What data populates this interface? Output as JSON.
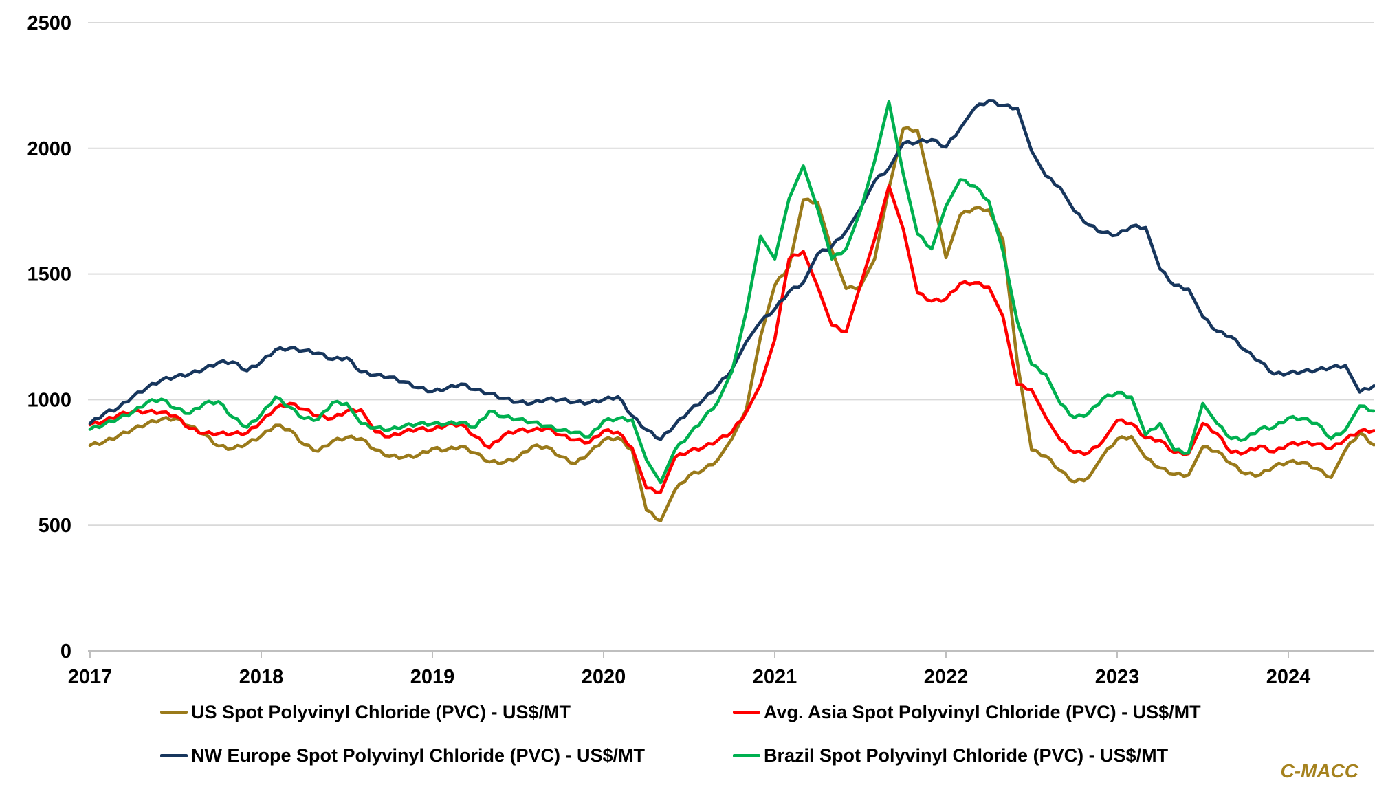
{
  "watermark": "C-MACC",
  "colors": {
    "us_line": "#9A7A1A",
    "asia_line": "#FF0000",
    "europe_line": "#17365D",
    "brazil_line": "#00B050",
    "gridline": "#D9D9D9",
    "axis": "#BFBFBF",
    "text": "#000000",
    "watermark": "#A5821E",
    "background": "#FFFFFF"
  },
  "chart_data": {
    "type": "line",
    "title": "",
    "xlabel": "",
    "ylabel": "",
    "unit": "US$/MT",
    "ylim": [
      0,
      2500
    ],
    "yticks": [
      0,
      500,
      1000,
      1500,
      2000,
      2500
    ],
    "xticks": [
      "2017",
      "2018",
      "2019",
      "2020",
      "2021",
      "2022",
      "2023",
      "2024"
    ],
    "grid": "horizontal",
    "legend_position": "bottom",
    "months": [
      "2017-01",
      "2017-02",
      "2017-03",
      "2017-04",
      "2017-05",
      "2017-06",
      "2017-07",
      "2017-08",
      "2017-09",
      "2017-10",
      "2017-11",
      "2017-12",
      "2018-01",
      "2018-02",
      "2018-03",
      "2018-04",
      "2018-05",
      "2018-06",
      "2018-07",
      "2018-08",
      "2018-09",
      "2018-10",
      "2018-11",
      "2018-12",
      "2019-01",
      "2019-02",
      "2019-03",
      "2019-04",
      "2019-05",
      "2019-06",
      "2019-07",
      "2019-08",
      "2019-09",
      "2019-10",
      "2019-11",
      "2019-12",
      "2020-01",
      "2020-02",
      "2020-03",
      "2020-04",
      "2020-05",
      "2020-06",
      "2020-07",
      "2020-08",
      "2020-09",
      "2020-10",
      "2020-11",
      "2020-12",
      "2021-01",
      "2021-02",
      "2021-03",
      "2021-04",
      "2021-05",
      "2021-06",
      "2021-07",
      "2021-08",
      "2021-09",
      "2021-10",
      "2021-11",
      "2021-12",
      "2022-01",
      "2022-02",
      "2022-03",
      "2022-04",
      "2022-05",
      "2022-06",
      "2022-07",
      "2022-08",
      "2022-09",
      "2022-10",
      "2022-11",
      "2022-12",
      "2023-01",
      "2023-02",
      "2023-03",
      "2023-04",
      "2023-05",
      "2023-06",
      "2023-07",
      "2023-08",
      "2023-09",
      "2023-10",
      "2023-11",
      "2023-12",
      "2024-01",
      "2024-02",
      "2024-03",
      "2024-04",
      "2024-05",
      "2024-06",
      "2024-07"
    ],
    "series": [
      {
        "key": "us",
        "name": "US Spot Polyvinyl Chloride (PVC) - US$/MT",
        "color": "#9A7A1A",
        "values": [
          818,
          832,
          856,
          882,
          905,
          922,
          925,
          895,
          862,
          815,
          805,
          825,
          855,
          898,
          880,
          821,
          795,
          835,
          850,
          845,
          800,
          775,
          771,
          778,
          805,
          800,
          814,
          788,
          752,
          750,
          770,
          814,
          812,
          773,
          745,
          788,
          840,
          848,
          800,
          560,
          518,
          640,
          698,
          721,
          760,
          845,
          960,
          1250,
          1455,
          1530,
          1795,
          1785,
          1595,
          1442,
          1450,
          1560,
          1840,
          2078,
          2072,
          1830,
          1565,
          1735,
          1762,
          1755,
          1635,
          1150,
          800,
          775,
          718,
          672,
          690,
          777,
          843,
          853,
          768,
          728,
          703,
          700,
          812,
          795,
          745,
          705,
          700,
          735,
          752,
          750,
          725,
          690,
          800,
          868,
          820
        ]
      },
      {
        "key": "asia",
        "name": "Avg. Asia Spot Polyvinyl Chloride (PVC) - US$/MT",
        "color": "#FF0000",
        "values": [
          900,
          915,
          940,
          952,
          952,
          950,
          935,
          885,
          866,
          865,
          865,
          867,
          912,
          966,
          985,
          962,
          934,
          925,
          955,
          960,
          872,
          852,
          872,
          884,
          880,
          900,
          902,
          854,
          809,
          859,
          878,
          878,
          886,
          859,
          840,
          830,
          876,
          870,
          808,
          648,
          632,
          770,
          795,
          810,
          838,
          872,
          950,
          1060,
          1240,
          1560,
          1590,
          1450,
          1295,
          1270,
          1455,
          1640,
          1850,
          1680,
          1425,
          1392,
          1400,
          1462,
          1465,
          1448,
          1330,
          1060,
          1040,
          930,
          840,
          790,
          788,
          835,
          918,
          905,
          848,
          838,
          790,
          785,
          905,
          865,
          790,
          790,
          815,
          792,
          822,
          828,
          824,
          806,
          842,
          875,
          877
        ]
      },
      {
        "key": "europe",
        "name": "NW Europe Spot Polyvinyl Chloride (PVC) - US$/MT",
        "color": "#17365D",
        "values": [
          905,
          945,
          968,
          1012,
          1048,
          1078,
          1092,
          1102,
          1122,
          1148,
          1150,
          1115,
          1150,
          1198,
          1205,
          1195,
          1185,
          1160,
          1167,
          1110,
          1098,
          1090,
          1071,
          1048,
          1032,
          1045,
          1062,
          1040,
          1024,
          1005,
          990,
          986,
          1002,
          1000,
          990,
          988,
          1000,
          1012,
          935,
          880,
          842,
          900,
          955,
          1000,
          1055,
          1120,
          1230,
          1310,
          1360,
          1430,
          1465,
          1580,
          1610,
          1670,
          1760,
          1870,
          1920,
          2020,
          2025,
          2035,
          2005,
          2080,
          2160,
          2190,
          2170,
          2160,
          1990,
          1890,
          1845,
          1750,
          1695,
          1665,
          1655,
          1690,
          1685,
          1520,
          1455,
          1440,
          1330,
          1272,
          1250,
          1195,
          1152,
          1102,
          1105,
          1112,
          1118,
          1128,
          1136,
          1030,
          1055
        ]
      },
      {
        "key": "brazil",
        "name": "Brazil Spot Polyvinyl Chloride (PVC) - US$/MT",
        "color": "#00B050",
        "values": [
          882,
          902,
          925,
          950,
          990,
          1002,
          965,
          945,
          985,
          992,
          930,
          890,
          940,
          1010,
          970,
          925,
          922,
          988,
          985,
          904,
          888,
          880,
          895,
          904,
          904,
          904,
          910,
          890,
          954,
          932,
          922,
          910,
          895,
          878,
          870,
          852,
          915,
          925,
          920,
          760,
          670,
          800,
          860,
          925,
          990,
          1113,
          1350,
          1650,
          1560,
          1800,
          1930,
          1760,
          1560,
          1600,
          1750,
          1950,
          2185,
          1900,
          1660,
          1600,
          1770,
          1875,
          1850,
          1790,
          1590,
          1310,
          1140,
          1100,
          985,
          928,
          945,
          1005,
          1028,
          1010,
          860,
          905,
          800,
          788,
          985,
          905,
          845,
          843,
          884,
          890,
          927,
          925,
          905,
          845,
          880,
          975,
          955
        ]
      }
    ]
  }
}
